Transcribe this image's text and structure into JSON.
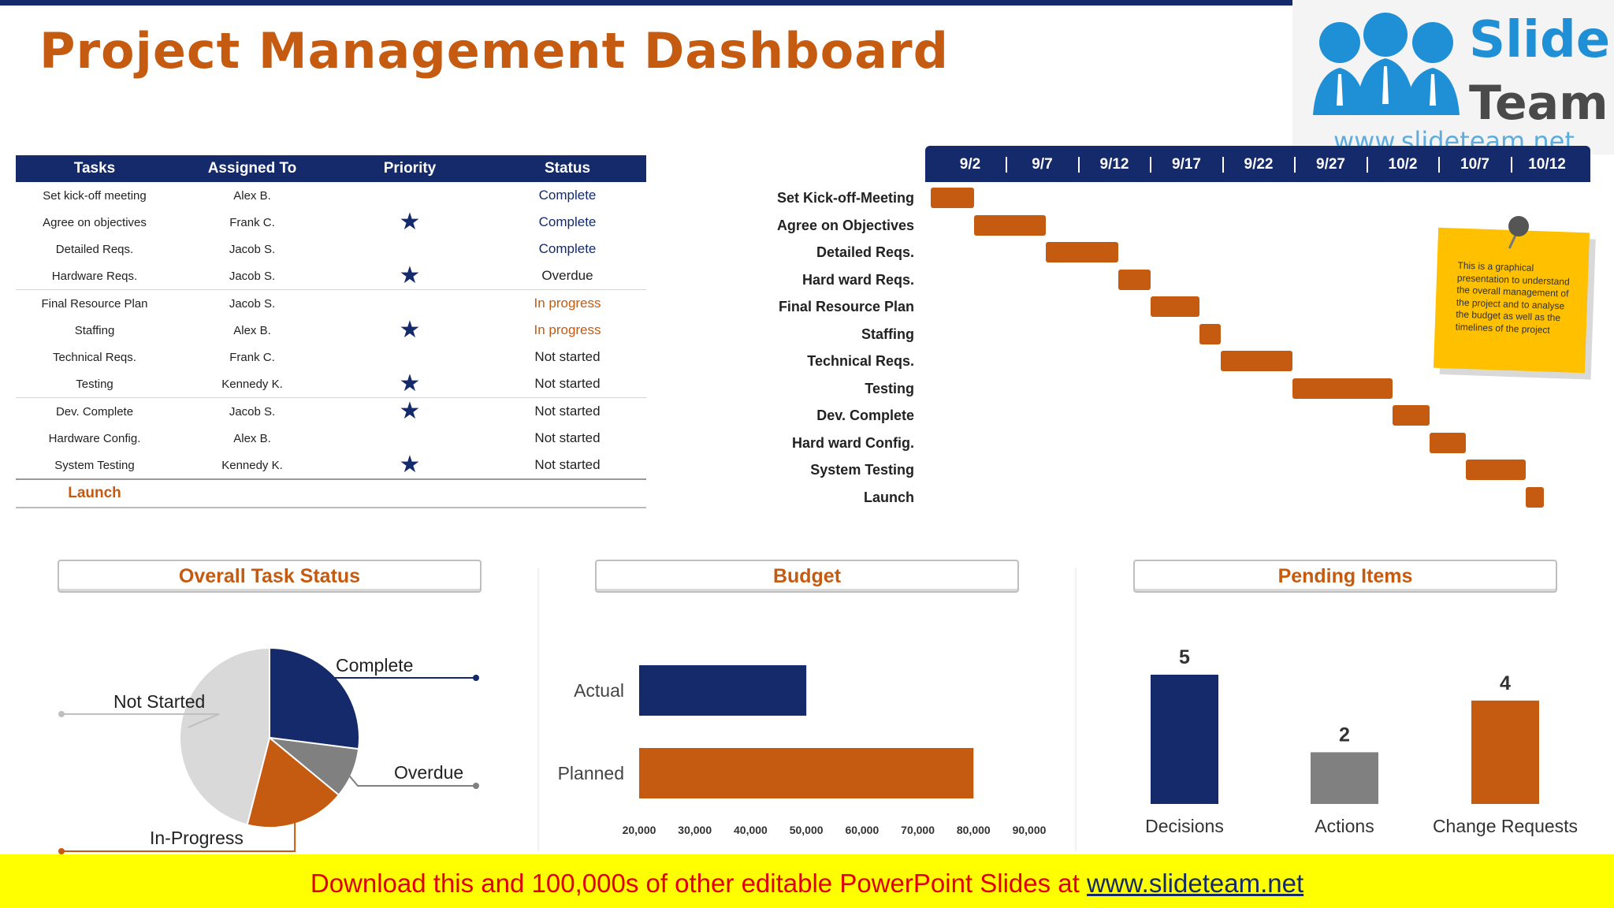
{
  "title": "Project Management Dashboard",
  "logo": {
    "word1": "Slide",
    "word2": "Team",
    "url": "www.slideteam.net"
  },
  "task_table": {
    "headers": [
      "Tasks",
      "Assigned To",
      "Priority",
      "Status"
    ],
    "rows": [
      {
        "task": "Set kick-off meeting",
        "assigned": "Alex B.",
        "priority": false,
        "status": "Complete",
        "kind": "complete"
      },
      {
        "task": "Agree on objectives",
        "assigned": "Frank C.",
        "priority": true,
        "status": "Complete",
        "kind": "complete"
      },
      {
        "task": "Detailed Reqs.",
        "assigned": "Jacob S.",
        "priority": false,
        "status": "Complete",
        "kind": "complete"
      },
      {
        "task": "Hardware Reqs.",
        "assigned": "Jacob S.",
        "priority": true,
        "status": "Overdue",
        "kind": "other"
      },
      {
        "task": "Final Resource Plan",
        "assigned": "Jacob S.",
        "priority": false,
        "status": "In progress",
        "kind": "progress"
      },
      {
        "task": "Staffing",
        "assigned": "Alex B.",
        "priority": true,
        "status": "In progress",
        "kind": "progress"
      },
      {
        "task": "Technical Reqs.",
        "assigned": "Frank C.",
        "priority": false,
        "status": "Not started",
        "kind": "other"
      },
      {
        "task": "Testing",
        "assigned": "Kennedy K.",
        "priority": true,
        "status": "Not started",
        "kind": "other"
      },
      {
        "task": "Dev. Complete",
        "assigned": "Jacob S.",
        "priority": true,
        "status": "Not started",
        "kind": "other"
      },
      {
        "task": "Hardware Config.",
        "assigned": "Alex B.",
        "priority": false,
        "status": "Not started",
        "kind": "other"
      },
      {
        "task": "System Testing",
        "assigned": "Kennedy K.",
        "priority": true,
        "status": "Not started",
        "kind": "other"
      }
    ],
    "launch": "Launch",
    "star_glyph": "★"
  },
  "note": "This is a graphical presentation to understand the overall management of the project and to analyse the budget as well as the timelines of the project",
  "panels": {
    "status": "Overall Task Status",
    "budget": "Budget",
    "pending": "Pending Items"
  },
  "footer": {
    "text": "Download this and 100,000s of other editable PowerPoint Slides at ",
    "link": "www.slideteam.net"
  },
  "colors": {
    "navy": "#142a6b",
    "orange": "#c55a11",
    "gray": "#808080",
    "light_gray": "#d9d9d9"
  },
  "chart_data": [
    {
      "type": "bar",
      "orientation": "gantt",
      "dates": [
        "9/2",
        "9/7",
        "9/12",
        "9/17",
        "9/22",
        "9/27",
        "10/2",
        "10/7",
        "10/12"
      ],
      "tasks": [
        {
          "label": "Set Kick-off-Meeting",
          "start": 0.0,
          "end": 0.6
        },
        {
          "label": "Agree on Objectives",
          "start": 0.6,
          "end": 1.6
        },
        {
          "label": "Detailed Reqs.",
          "start": 1.6,
          "end": 2.6
        },
        {
          "label": "Hard ward Reqs.",
          "start": 2.6,
          "end": 3.05
        },
        {
          "label": "Final Resource Plan",
          "start": 3.05,
          "end": 3.73
        },
        {
          "label": "Staffing",
          "start": 3.73,
          "end": 4.02
        },
        {
          "label": "Technical Reqs.",
          "start": 4.02,
          "end": 5.02
        },
        {
          "label": "Testing",
          "start": 5.02,
          "end": 6.4
        },
        {
          "label": "Dev. Complete",
          "start": 6.4,
          "end": 6.92
        },
        {
          "label": "Hard ward Config.",
          "start": 6.92,
          "end": 7.42
        },
        {
          "label": "System Testing",
          "start": 7.42,
          "end": 8.25
        },
        {
          "label": "Launch",
          "start": 8.25,
          "end": 8.5
        }
      ]
    },
    {
      "type": "pie",
      "title": "Overall Task Status",
      "slices": [
        {
          "label": "Complete",
          "value": 27,
          "color": "#142a6b"
        },
        {
          "label": "Overdue",
          "value": 9,
          "color": "#808080"
        },
        {
          "label": "In-Progress",
          "value": 18,
          "color": "#c55a11"
        },
        {
          "label": "Not Started",
          "value": 46,
          "color": "#d9d9d9"
        }
      ]
    },
    {
      "type": "bar",
      "orientation": "horizontal",
      "title": "Budget",
      "categories": [
        "Actual",
        "Planned"
      ],
      "values": [
        50000,
        80000
      ],
      "colors": [
        "#142a6b",
        "#c55a11"
      ],
      "xlim": [
        20000,
        90000
      ],
      "ticks": [
        "20,000",
        "30,000",
        "40,000",
        "50,000",
        "60,000",
        "70,000",
        "80,000",
        "90,000"
      ]
    },
    {
      "type": "bar",
      "title": "Pending Items",
      "categories": [
        "Decisions",
        "Actions",
        "Change Requests"
      ],
      "values": [
        5,
        2,
        4
      ],
      "colors": [
        "#142a6b",
        "#808080",
        "#c55a11"
      ],
      "ylim": [
        0,
        5
      ]
    }
  ]
}
